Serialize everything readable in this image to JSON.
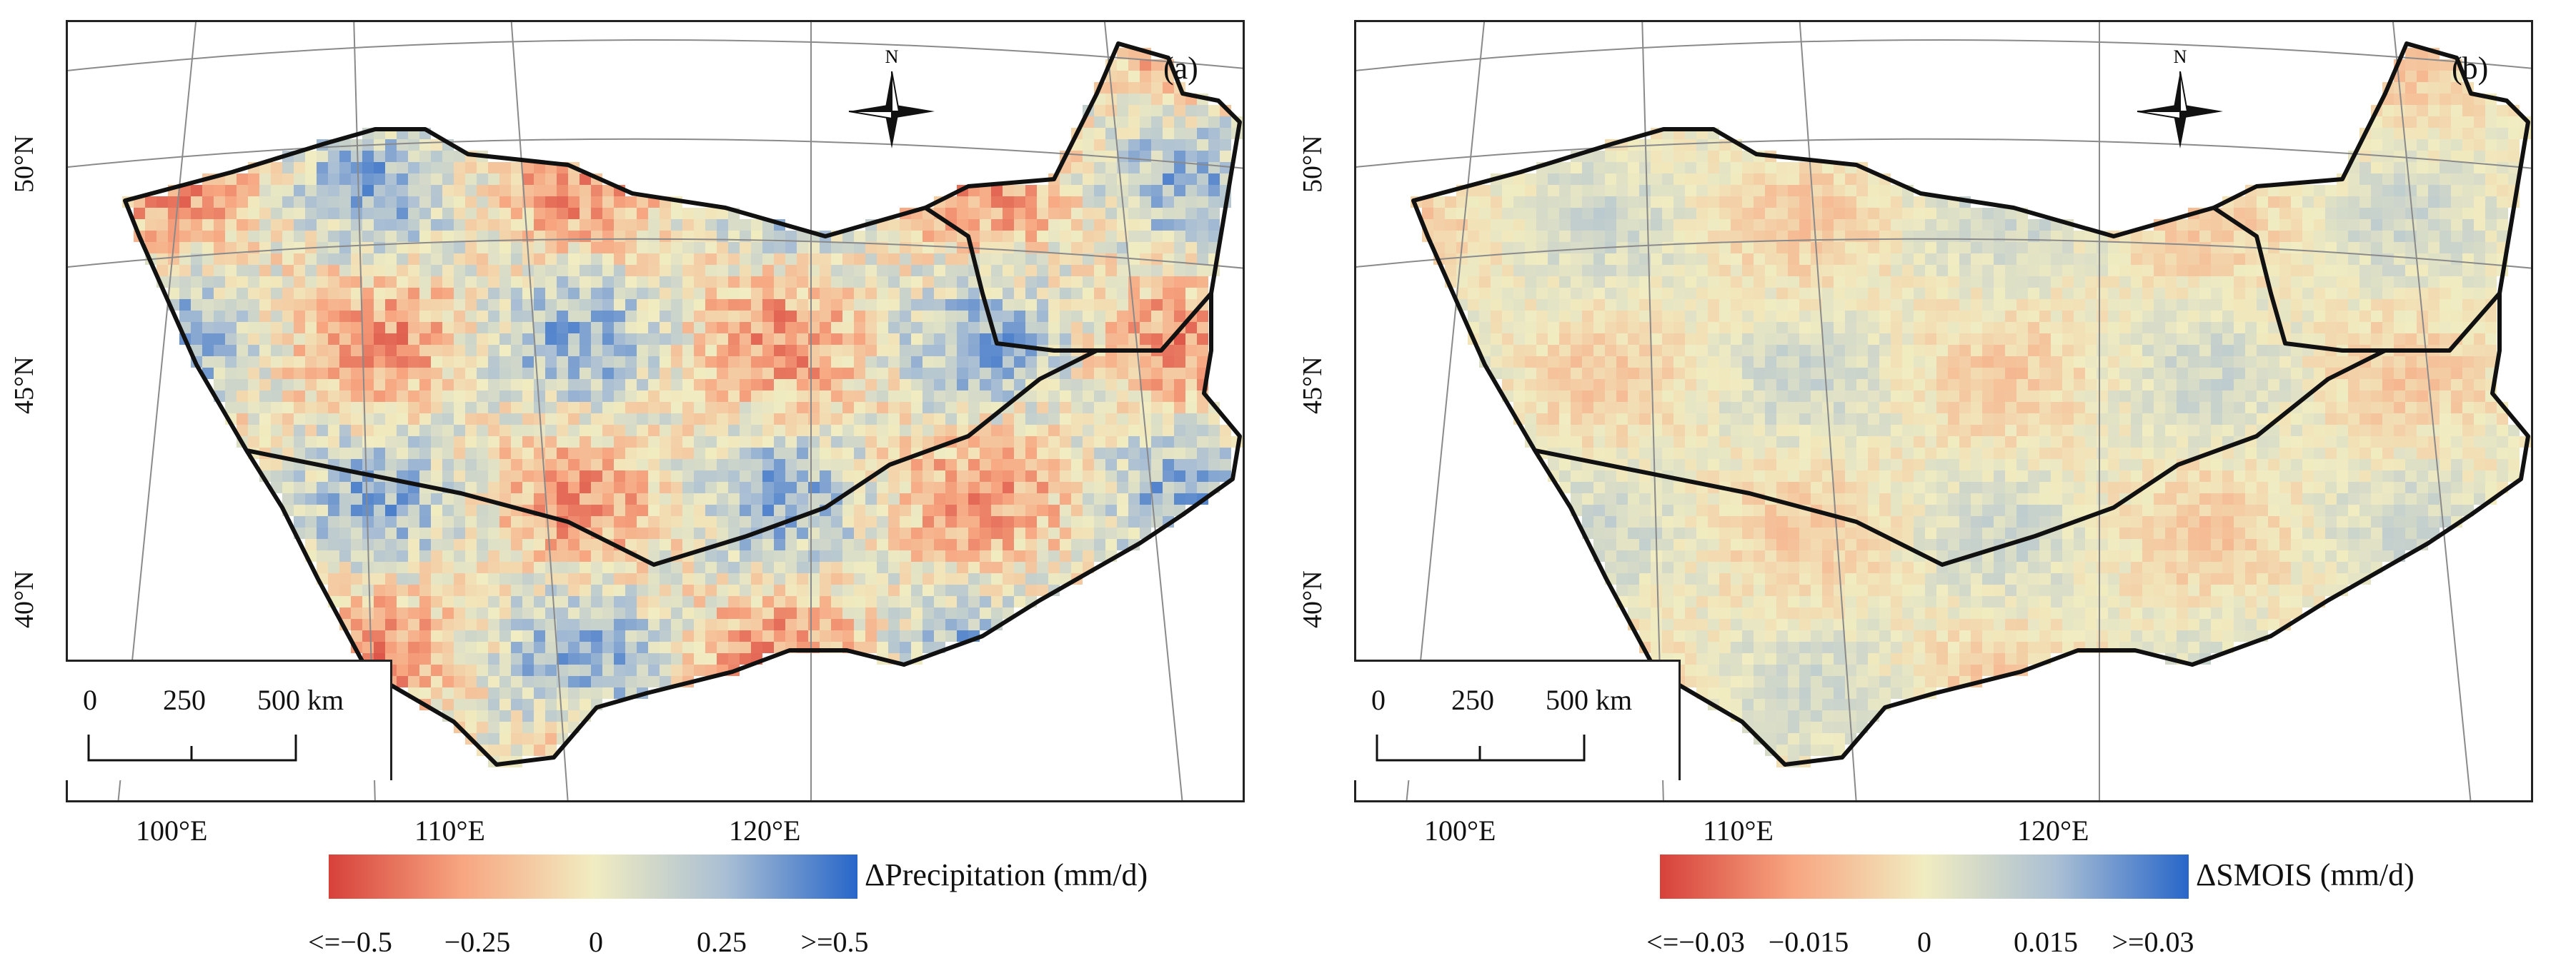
{
  "panels": [
    {
      "tag": "(a)",
      "variable": "ΔPrecipitation (mm/d)",
      "colorbar": {
        "colors": [
          "#d7413a",
          "#f7a580",
          "#f1ecc1",
          "#aabfd4",
          "#2766c9"
        ],
        "ticks": [
          "<=−0.5",
          "−0.25",
          "0",
          "0.25",
          ">=0.5"
        ]
      },
      "field_values_summary": "mixed",
      "seed": 11
    },
    {
      "tag": "(b)",
      "variable": "ΔSMOIS (mm/d)",
      "colorbar": {
        "colors": [
          "#d7413a",
          "#f7a580",
          "#f1ecc1",
          "#aabfd4",
          "#2766c9"
        ],
        "ticks": [
          "<=−0.03",
          "−0.015",
          "0",
          "0.015",
          ">=0.03"
        ]
      },
      "field_values_summary": "mostly-near-zero",
      "seed": 29
    }
  ],
  "lat_labels": [
    "50°N",
    "45°N",
    "40°N"
  ],
  "lon_labels": [
    "100°E",
    "110°E",
    "120°E"
  ],
  "north_arrow_label": "N",
  "scale_bar": {
    "ticks": [
      "0",
      "250",
      "500 km"
    ]
  },
  "colors": {
    "border": "#111111",
    "grid": "#8a8a8a",
    "background": "#ffffff"
  }
}
